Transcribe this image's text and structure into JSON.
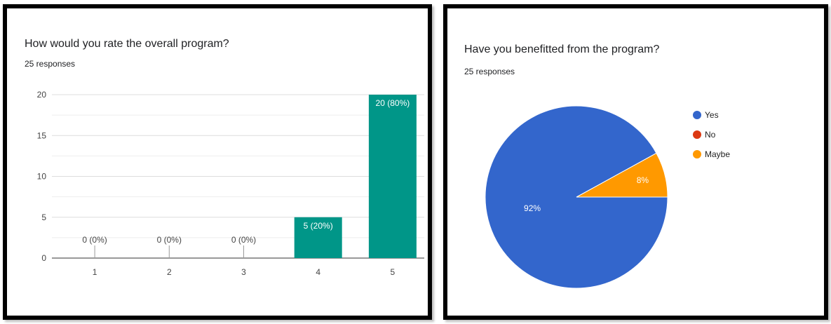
{
  "chart_data": [
    {
      "type": "bar",
      "title": "How would you rate the overall program?",
      "subtitle": "25 responses",
      "categories": [
        "1",
        "2",
        "3",
        "4",
        "5"
      ],
      "values": [
        0,
        0,
        0,
        5,
        20
      ],
      "data_labels": [
        "0 (0%)",
        "0 (0%)",
        "0 (0%)",
        "5 (20%)",
        "20 (80%)"
      ],
      "yticks": [
        0,
        5,
        10,
        15,
        20
      ],
      "ylim": [
        0,
        20
      ],
      "grid": true,
      "color": "#009688"
    },
    {
      "type": "pie",
      "title": "Have you benefitted from the program?",
      "subtitle": "25 responses",
      "legend_position": "right",
      "slices": [
        {
          "label": "Yes",
          "value": 92,
          "display": "92%",
          "color": "#3366CC"
        },
        {
          "label": "No",
          "value": 0,
          "display": "",
          "color": "#DC3912"
        },
        {
          "label": "Maybe",
          "value": 8,
          "display": "8%",
          "color": "#FF9900"
        }
      ]
    }
  ]
}
